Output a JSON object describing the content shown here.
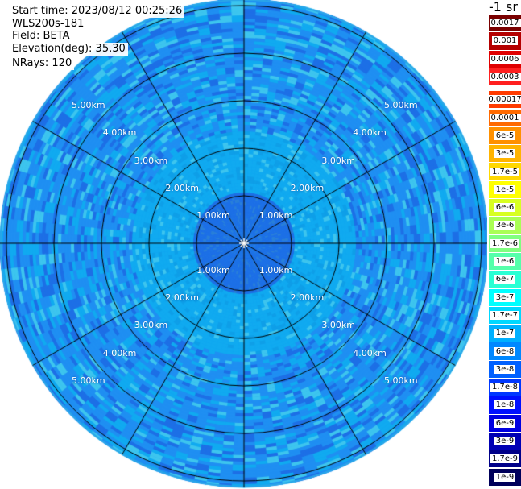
{
  "info": {
    "start_time": "Start time: 2023/08/12 00:25:26",
    "instrument": "WLS200s-181",
    "field": "Field: BETA",
    "elevation": "Elevation(deg): 35.30",
    "nrays": "NRays: 120"
  },
  "colorbar": {
    "title": "-1 sr",
    "upper_labels": [
      "0.0017",
      "0.001",
      "0.0006",
      "0.0003"
    ],
    "lower_labels": [
      "0.00017",
      "0.0001",
      "6e-5",
      "3e-5",
      "1.7e-5",
      "1e-5",
      "6e-6",
      "3e-6",
      "1.7e-6",
      "1e-6",
      "6e-7",
      "3e-7",
      "1.7e-7",
      "1e-7",
      "6e-8",
      "3e-8",
      "1.7e-8",
      "1e-8",
      "6e-9",
      "3e-9",
      "1.7e-9",
      "1e-9"
    ],
    "upper_colors": [
      "#7a0000",
      "#b40000",
      "#e00000",
      "#ff2020"
    ],
    "lower_colors": [
      "#ff3b00",
      "#ff6a00",
      "#ff9000",
      "#ffb400",
      "#ffd800",
      "#ffff00",
      "#d8ff22",
      "#aaff55",
      "#80ff80",
      "#55ffaa",
      "#2affd4",
      "#00ffff",
      "#00d8ff",
      "#00b0ff",
      "#0088ff",
      "#0060ff",
      "#0038ff",
      "#0010ff",
      "#0000e0",
      "#0000b4",
      "#000088",
      "#00005a"
    ]
  },
  "ppi": {
    "range_rings_km": [
      1,
      2,
      3,
      4,
      5
    ],
    "ring_labels": [
      "1.00km",
      "2.00km",
      "3.00km",
      "4.00km",
      "5.00km"
    ],
    "max_range_km": 6.7,
    "n_spokes": 12,
    "palette": [
      "#1d6fe6",
      "#1f8ff2",
      "#10aaf0",
      "#3dc5ee",
      "#2a7fd8",
      "#0e9fe8"
    ]
  }
}
